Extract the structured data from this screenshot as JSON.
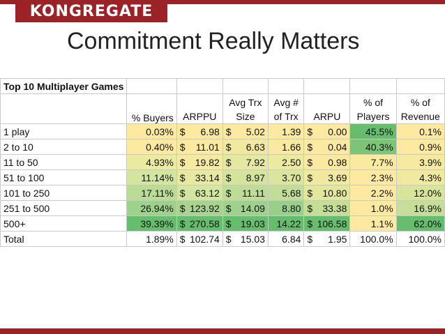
{
  "header": {
    "logo_text": "KONGREGATE",
    "title": "Commitment Really Matters"
  },
  "table": {
    "caption": "Top 10 Multiplayer Games",
    "columns": [
      {
        "line1": "",
        "line2": "% Buyers"
      },
      {
        "line1": "",
        "line2": "ARPPU"
      },
      {
        "line1": "Avg Trx",
        "line2": "Size"
      },
      {
        "line1": "Avg #",
        "line2": "of Trx"
      },
      {
        "line1": "",
        "line2": "ARPU"
      },
      {
        "line1": "% of",
        "line2": "Players"
      },
      {
        "line1": "% of",
        "line2": "Revenue"
      }
    ],
    "rows": [
      {
        "label": "1 play",
        "buyers": "0.03%",
        "arppu": "6.98",
        "trx_size": "5.02",
        "num_trx": "1.39",
        "arpu": "0.00",
        "players": "45.5%",
        "revenue": "0.1%"
      },
      {
        "label": "2 to 10",
        "buyers": "0.40%",
        "arppu": "11.01",
        "trx_size": "6.63",
        "num_trx": "1.66",
        "arpu": "0.04",
        "players": "40.3%",
        "revenue": "0.9%"
      },
      {
        "label": "11 to 50",
        "buyers": "4.93%",
        "arppu": "19.82",
        "trx_size": "7.92",
        "num_trx": "2.50",
        "arpu": "0.98",
        "players": "7.7%",
        "revenue": "3.9%"
      },
      {
        "label": "51 to 100",
        "buyers": "11.14%",
        "arppu": "33.14",
        "trx_size": "8.97",
        "num_trx": "3.70",
        "arpu": "3.69",
        "players": "2.3%",
        "revenue": "4.3%"
      },
      {
        "label": "101 to 250",
        "buyers": "17.11%",
        "arppu": "63.12",
        "trx_size": "11.11",
        "num_trx": "5.68",
        "arpu": "10.80",
        "players": "2.2%",
        "revenue": "12.0%"
      },
      {
        "label": "251 to 500",
        "buyers": "26.94%",
        "arppu": "123.92",
        "trx_size": "14.09",
        "num_trx": "8.80",
        "arpu": "33.38",
        "players": "1.0%",
        "revenue": "16.9%"
      },
      {
        "label": "500+",
        "buyers": "39.39%",
        "arppu": "270.58",
        "trx_size": "19.03",
        "num_trx": "14.22",
        "arpu": "106.58",
        "players": "1.1%",
        "revenue": "62.0%"
      },
      {
        "label": "Total",
        "buyers": "1.89%",
        "arppu": "102.74",
        "trx_size": "15.03",
        "num_trx": "6.84",
        "arpu": "1.95",
        "players": "100.0%",
        "revenue": "100.0%"
      }
    ],
    "currency_symbol": "$",
    "colors": {
      "buyers": [
        "#fde9a0",
        "#fde9a0",
        "#eaeba0",
        "#d4e5a0",
        "#bcdc96",
        "#9ed28c",
        "#67bd6e",
        "#ffffff"
      ],
      "arppu": [
        "#fde9a0",
        "#fde9a0",
        "#f5eaa0",
        "#e8e9a0",
        "#d4e5a0",
        "#a9d48f",
        "#67bd6e",
        "#ffffff"
      ],
      "trx_size": [
        "#fde9a0",
        "#f2e9a0",
        "#e5e8a0",
        "#d5e49c",
        "#bfdc96",
        "#9ed28c",
        "#67bd6e",
        "#ffffff"
      ],
      "num_trx": [
        "#fde9a0",
        "#f9eaa0",
        "#ecea9f",
        "#dce59c",
        "#c2dd97",
        "#98cf8b",
        "#67bd6e",
        "#ffffff"
      ],
      "arpu": [
        "#fde9a0",
        "#fde9a0",
        "#fbe9a0",
        "#f2e9a0",
        "#e2e79c",
        "#c4dd97",
        "#67bd6e",
        "#ffffff"
      ],
      "players": [
        "#67bd6e",
        "#7cc576",
        "#f9eaa0",
        "#fde9a0",
        "#fde9a0",
        "#fde9a0",
        "#fde9a0",
        "#ffffff"
      ],
      "revenue": [
        "#fde9a0",
        "#fde9a0",
        "#f5eaa0",
        "#f1e99f",
        "#d9e49b",
        "#c6de98",
        "#67bd6e",
        "#ffffff"
      ]
    }
  }
}
